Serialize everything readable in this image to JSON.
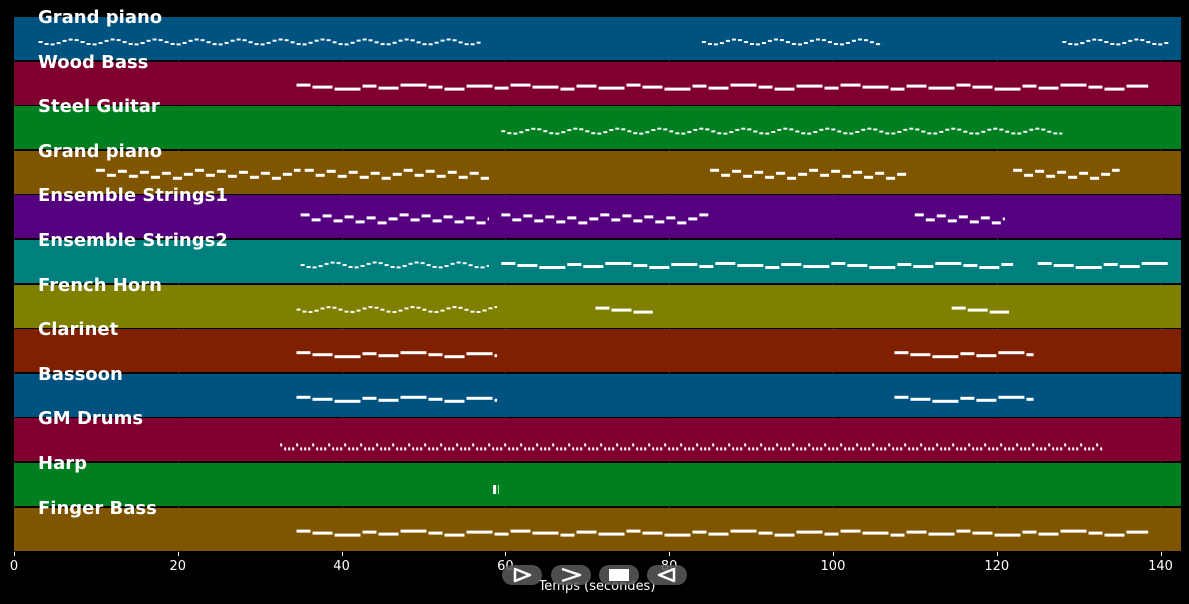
{
  "xaxis": {
    "label": "Temps (secondes)",
    "ticks": [
      "0",
      "20",
      "40",
      "60",
      "80",
      "100",
      "120",
      "140"
    ],
    "max": 142.5
  },
  "tracks": [
    {
      "name": "Grand piano",
      "color": "#005380"
    },
    {
      "name": "Wood Bass",
      "color": "#7f0030"
    },
    {
      "name": "Steel Guitar",
      "color": "#007f20"
    },
    {
      "name": "Grand piano",
      "color": "#7f5500"
    },
    {
      "name": "Ensemble Strings1",
      "color": "#55007f"
    },
    {
      "name": "Ensemble Strings2",
      "color": "#007f7f"
    },
    {
      "name": "French Horn",
      "color": "#7f7f00"
    },
    {
      "name": "Clarinet",
      "color": "#7f2000"
    },
    {
      "name": "Bassoon",
      "color": "#005380"
    },
    {
      "name": "GM Drums",
      "color": "#7f0030"
    },
    {
      "name": "Harp",
      "color": "#007f20"
    },
    {
      "name": "Finger Bass",
      "color": "#7f5500"
    }
  ],
  "controls": [
    {
      "name": "play-button",
      "icon": "play-icon"
    },
    {
      "name": "forward-button",
      "icon": "forward-icon"
    },
    {
      "name": "stop-button",
      "icon": "stop-icon"
    },
    {
      "name": "rewind-button",
      "icon": "rewind-icon"
    }
  ]
}
